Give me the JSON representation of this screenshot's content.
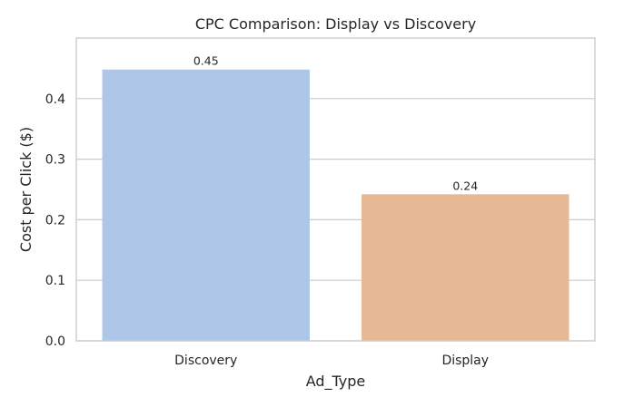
{
  "chart_data": {
    "type": "bar",
    "title": "CPC Comparison: Display vs Discovery",
    "xlabel": "Ad_Type",
    "ylabel": "Cost per Click ($)",
    "categories": [
      "Discovery",
      "Display"
    ],
    "values": [
      0.448,
      0.242
    ],
    "data_labels": [
      "0.45",
      "0.24"
    ],
    "ylim": [
      0,
      0.5
    ],
    "yticks": [
      "0.0",
      "0.1",
      "0.2",
      "0.3",
      "0.4"
    ],
    "ytick_values": [
      0,
      0.1,
      0.2,
      0.3,
      0.4
    ],
    "grid": true,
    "colors": [
      "#aec7e8",
      "#e6b894"
    ],
    "grid_color": "#cccccc",
    "frame_color": "#cccccc"
  }
}
